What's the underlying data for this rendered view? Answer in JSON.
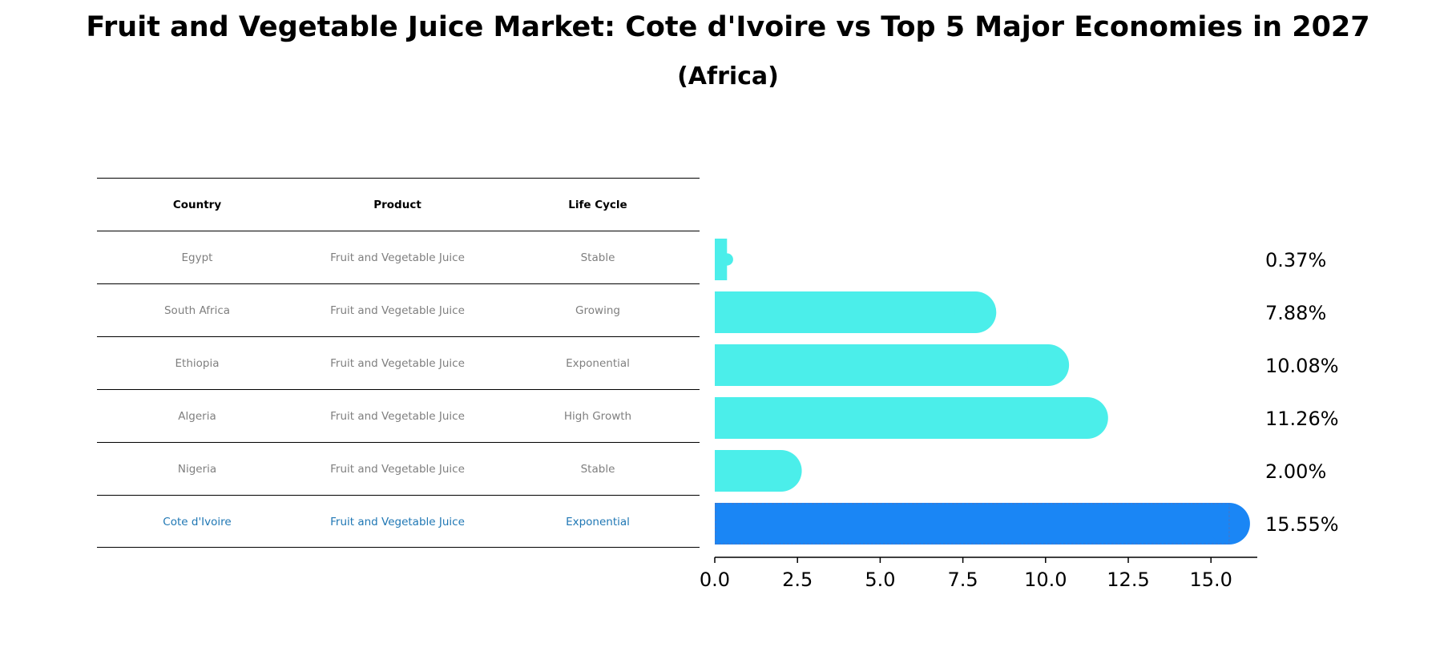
{
  "title": "Fruit and Vegetable Juice Market: Cote d'Ivoire vs Top 5 Major Economies in 2027",
  "subtitle": "(Africa)",
  "table": {
    "headers": [
      "Country",
      "Product",
      "Life Cycle"
    ],
    "rows": [
      [
        "Egypt",
        "Fruit and Vegetable Juice",
        "Stable"
      ],
      [
        "South Africa",
        "Fruit and Vegetable Juice",
        "Growing"
      ],
      [
        "Ethiopia",
        "Fruit and Vegetable Juice",
        "Exponential"
      ],
      [
        "Algeria",
        "Fruit and Vegetable Juice",
        "High Growth"
      ],
      [
        "Nigeria",
        "Fruit and Vegetable Juice",
        "Stable"
      ],
      [
        "Cote d'Ivoire",
        "Fruit and Vegetable Juice",
        "Exponential"
      ]
    ]
  },
  "chart_data": {
    "type": "bar",
    "orientation": "horizontal",
    "categories": [
      "Egypt",
      "South Africa",
      "Ethiopia",
      "Algeria",
      "Nigeria",
      "Cote d'Ivoire"
    ],
    "values": [
      0.37,
      7.88,
      10.08,
      11.26,
      2.0,
      15.55
    ],
    "value_labels": [
      "0.37%",
      "7.88%",
      "10.08%",
      "11.26%",
      "2.00%",
      "15.55%"
    ],
    "highlight": "Cote d'Ivoire",
    "xlim": [
      0,
      16.4
    ],
    "xticks": [
      0.0,
      2.5,
      5.0,
      7.5,
      10.0,
      12.5,
      15.0
    ],
    "xtick_labels": [
      "0.0",
      "2.5",
      "5.0",
      "7.5",
      "10.0",
      "12.5",
      "15.0"
    ],
    "colors": {
      "bar": "#4beeea",
      "highlight": "#1a86f5",
      "highlight_text": "#1f77b4",
      "muted_text": "#7f7f7f"
    }
  }
}
